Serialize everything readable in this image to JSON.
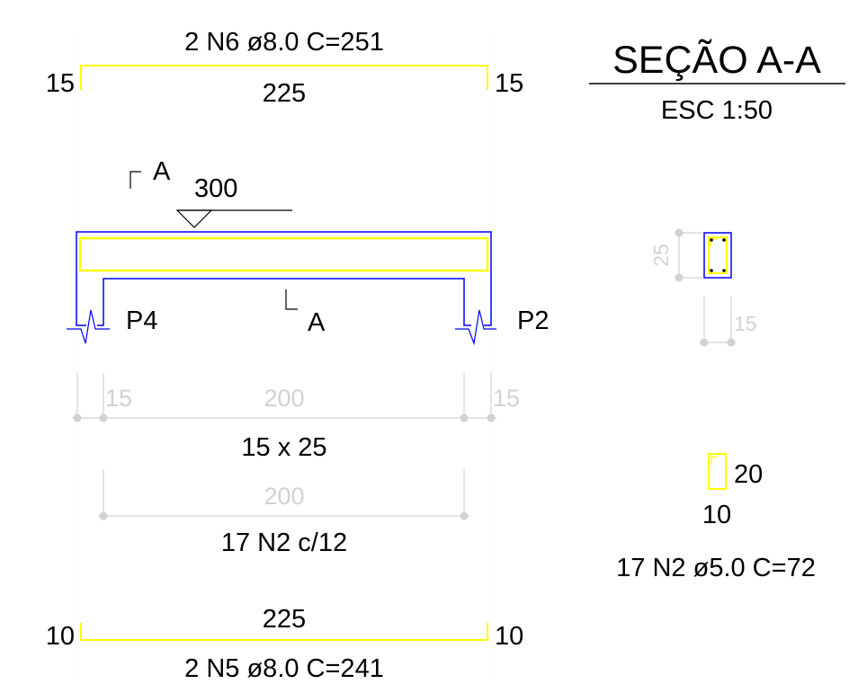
{
  "top_bar": {
    "label": "2 N6 ø8.0  C=251",
    "length": "225",
    "hook_left": "15",
    "hook_right": "15"
  },
  "section_title": {
    "title": "SEÇÃO A-A",
    "scale": "ESC 1:50"
  },
  "section_marks": {
    "top": "A",
    "bottom": "A"
  },
  "level_mark": "300",
  "supports": {
    "left": "P4",
    "right": "P2"
  },
  "dimensions": {
    "left_support": "15",
    "span": "200",
    "right_support": "15"
  },
  "beam_size": "15 x 25",
  "stirrup_dimension": "200",
  "stirrup_spacing": "17 N2 c/12",
  "section_detail": {
    "height": "25",
    "width": "15"
  },
  "stirrup_detail": {
    "height": "20",
    "width": "10",
    "label": "17 N2 ø5.0  C=72"
  },
  "bottom_bar": {
    "label": "2 N5 ø8.0  C=241",
    "length": "225",
    "hook_left": "10",
    "hook_right": "10"
  },
  "colors": {
    "rebar": "#ffff00",
    "concrete_outline": "#0000ff",
    "dimension": "#d2d2d2",
    "text": "#000000"
  }
}
